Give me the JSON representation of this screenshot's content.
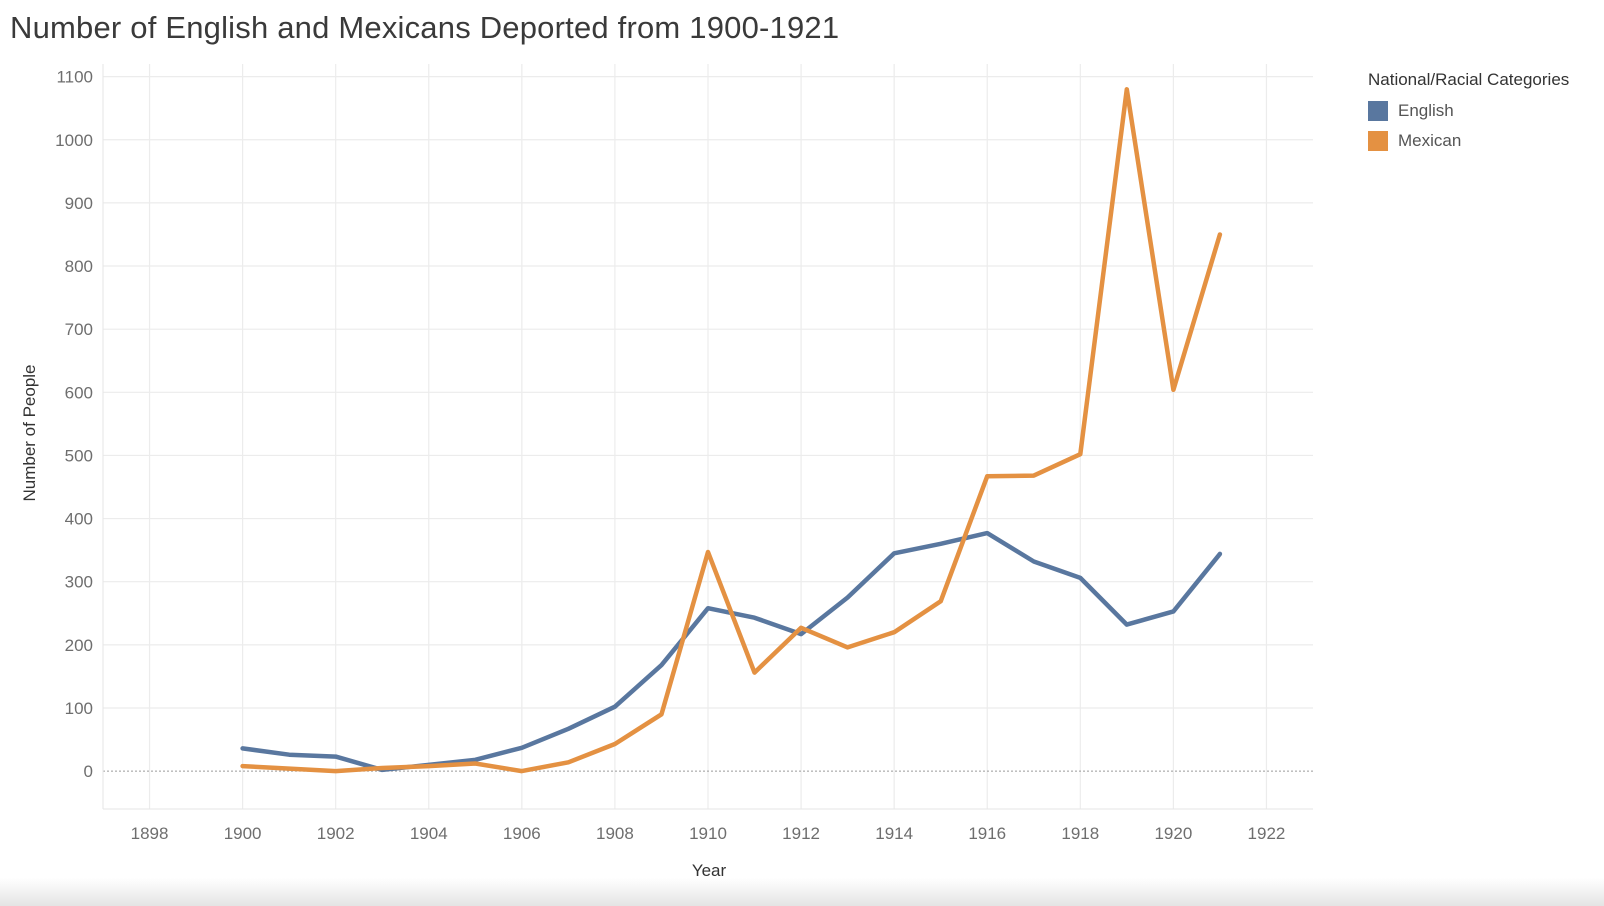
{
  "chart_data": {
    "type": "line",
    "title": "Number of English and Mexicans Deported from 1900-1921",
    "xlabel": "Year",
    "ylabel": "Number of People",
    "xlim": [
      1897,
      1923
    ],
    "ylim": [
      -60,
      1120
    ],
    "x_ticks": [
      1898,
      1900,
      1902,
      1904,
      1906,
      1908,
      1910,
      1912,
      1914,
      1916,
      1918,
      1920,
      1922
    ],
    "y_ticks": [
      0,
      100,
      200,
      300,
      400,
      500,
      600,
      700,
      800,
      900,
      1000,
      1100
    ],
    "grid": true,
    "zero_line": true,
    "legend": {
      "title": "National/Racial Categories",
      "position": "top-right"
    },
    "x": [
      1900,
      1901,
      1902,
      1903,
      1904,
      1905,
      1906,
      1907,
      1908,
      1909,
      1910,
      1911,
      1912,
      1913,
      1914,
      1915,
      1916,
      1917,
      1918,
      1919,
      1920,
      1921
    ],
    "series": [
      {
        "name": "English",
        "color": "#59779f",
        "values": [
          36,
          26,
          23,
          2,
          10,
          18,
          37,
          67,
          102,
          168,
          258,
          243,
          217,
          275,
          345,
          360,
          377,
          332,
          306,
          232,
          253,
          344
        ]
      },
      {
        "name": "Mexican",
        "color": "#e49142",
        "values": [
          8,
          4,
          0,
          5,
          8,
          12,
          0,
          14,
          43,
          90,
          347,
          156,
          227,
          196,
          220,
          269,
          467,
          468,
          502,
          1080,
          604,
          850
        ]
      }
    ]
  }
}
